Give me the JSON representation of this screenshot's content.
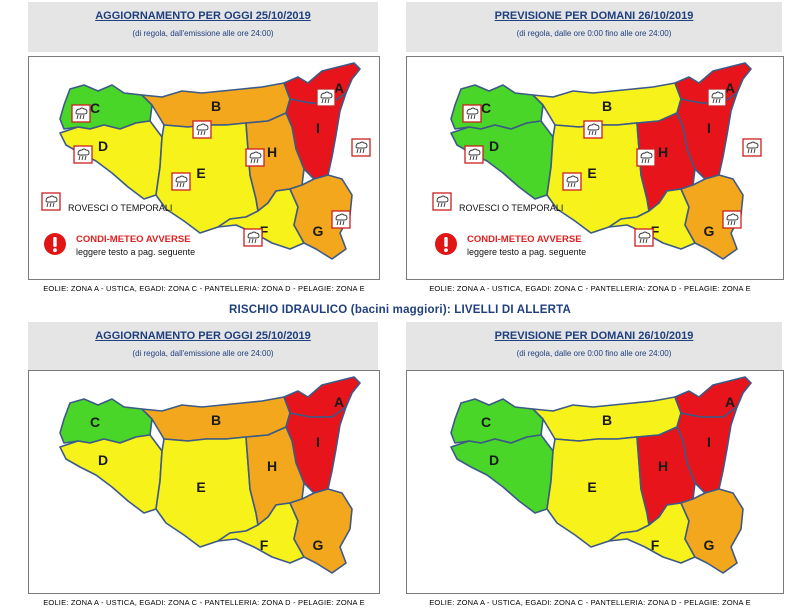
{
  "top_left": {
    "header": "AGGIORNAMENTO PER OGGI 25/10/2019",
    "subheader": "(di regola, dall'emissione alle ore 24:00)",
    "zone_colors": {
      "A": "#e8141b",
      "B": "#f3a71d",
      "C": "#49d629",
      "D": "#f7f21a",
      "E": "#f7f21a",
      "F": "#f7f21a",
      "G": "#f3a71d",
      "H": "#f3a71d",
      "I": "#e8141b"
    },
    "storm_zones": [
      "A",
      "B",
      "C",
      "D",
      "E",
      "F",
      "G",
      "H",
      "I"
    ]
  },
  "top_right": {
    "header": "PREVISIONE PER DOMANI 26/10/2019",
    "subheader": "(di regola, dalle ore 0:00 fino alle ore 24:00)",
    "zone_colors": {
      "A": "#e8141b",
      "B": "#f7f21a",
      "C": "#49d629",
      "D": "#49d629",
      "E": "#f7f21a",
      "F": "#f7f21a",
      "G": "#f3a71d",
      "H": "#e8141b",
      "I": "#e8141b"
    },
    "storm_zones": [
      "A",
      "B",
      "C",
      "D",
      "E",
      "F",
      "G",
      "H",
      "I"
    ]
  },
  "legend": {
    "storm_label": "ROVESCI O TEMPORALI",
    "warning_label": "CONDI-METEO AVVERSE",
    "warning_sub": "leggere testo a pag. seguente"
  },
  "footnote": "EOLIE: ZONA A - USTICA, EGADI: ZONA C - PANTELLERIA: ZONA D - PELAGIE: ZONA E",
  "middle_title": "RISCHIO IDRAULICO (bacini maggiori): LIVELLI DI ALLERTA",
  "bottom_left": {
    "header": "AGGIORNAMENTO PER OGGI 25/10/2019",
    "subheader": "(di regola, dall'emissione alle ore 24:00)",
    "zone_colors": {
      "A": "#e8141b",
      "B": "#f3a71d",
      "C": "#49d629",
      "D": "#f7f21a",
      "E": "#f7f21a",
      "F": "#f7f21a",
      "G": "#f3a71d",
      "H": "#f3a71d",
      "I": "#e8141b"
    }
  },
  "bottom_right": {
    "header": "PREVISIONE PER DOMANI 26/10/2019",
    "subheader": "(di regola, dalle ore 0:00 fino alle ore 24:00)",
    "zone_colors": {
      "A": "#e8141b",
      "B": "#f7f21a",
      "C": "#49d629",
      "D": "#49d629",
      "E": "#f7f21a",
      "F": "#f7f21a",
      "G": "#f3a71d",
      "H": "#e8141b",
      "I": "#e8141b"
    }
  },
  "zone_labels": {
    "A": "A",
    "B": "B",
    "C": "C",
    "D": "D",
    "E": "E",
    "F": "F",
    "G": "G",
    "H": "H",
    "I": "I"
  }
}
